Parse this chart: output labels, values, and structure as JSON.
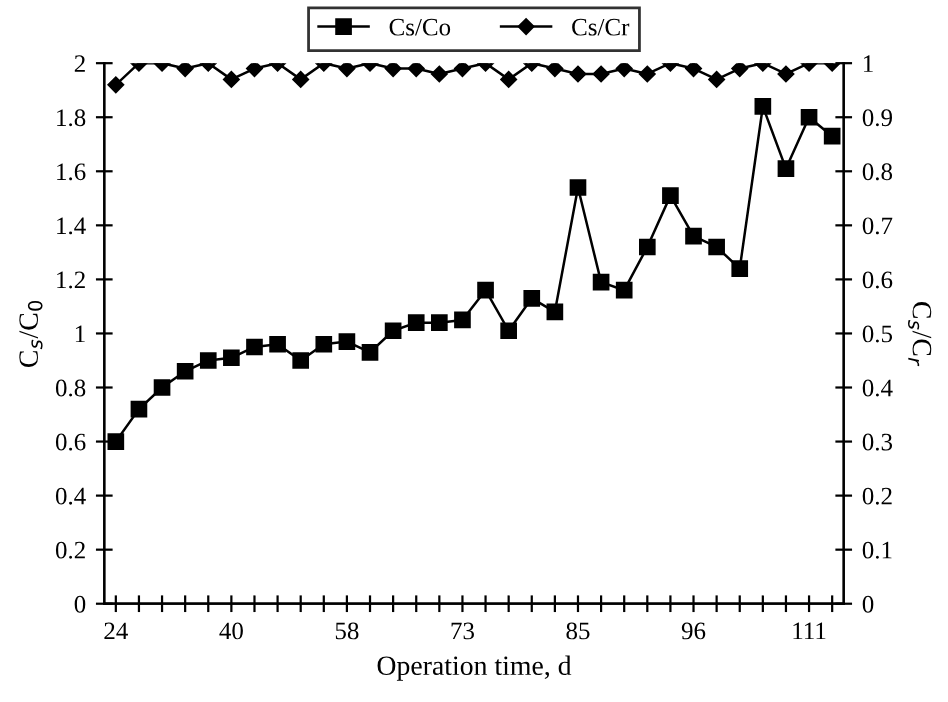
{
  "chart_data": {
    "type": "line",
    "xlabel": "Operation time, d",
    "ylabel": "C$_{s}$/C$_{0}$",
    "y2label": "C$_{s}$/C$_{r}$",
    "categories": [
      "24",
      null,
      null,
      null,
      null,
      "40",
      null,
      null,
      null,
      null,
      "58",
      null,
      null,
      null,
      null,
      "73",
      null,
      null,
      null,
      null,
      "85",
      null,
      null,
      null,
      null,
      "96",
      null,
      null,
      null,
      null,
      "111",
      null
    ],
    "series": [
      {
        "name": "Cs/Co",
        "color": "#000000",
        "marker": "square",
        "values": [
          0.6,
          0.72,
          0.8,
          0.86,
          0.9,
          0.91,
          0.95,
          0.96,
          0.9,
          0.96,
          0.97,
          0.93,
          1.01,
          1.04,
          1.04,
          1.05,
          1.16,
          1.01,
          1.13,
          1.08,
          1.54,
          1.19,
          1.16,
          1.32,
          1.51,
          1.36,
          1.32,
          1.24,
          1.84,
          1.61,
          1.8,
          1.73
        ]
      },
      {
        "name": "Cs/Cr",
        "color": "#000000",
        "marker": "diamond",
        "axis": "y2",
        "values": [
          0.96,
          1,
          1,
          0.99,
          1,
          0.97,
          0.99,
          1,
          0.97,
          1,
          0.99,
          1,
          0.99,
          0.99,
          0.98,
          0.99,
          1,
          0.97,
          1,
          0.99,
          0.98,
          0.98,
          0.99,
          0.98,
          1,
          0.99,
          0.97,
          0.99,
          1,
          0.98,
          1,
          1
        ]
      }
    ],
    "ylim": [
      0,
      2
    ],
    "yticks": [
      0,
      0.2,
      0.4,
      0.6,
      0.8,
      1,
      1.2,
      1.4,
      1.6,
      1.8,
      2
    ],
    "y2lim": [
      0,
      1
    ],
    "y2ticks": [
      0,
      0.1,
      0.2,
      0.3,
      0.4,
      0.5,
      0.6,
      0.7,
      0.8,
      0.9,
      1
    ],
    "legend": "top",
    "grid": false,
    "line_style": "solid"
  }
}
